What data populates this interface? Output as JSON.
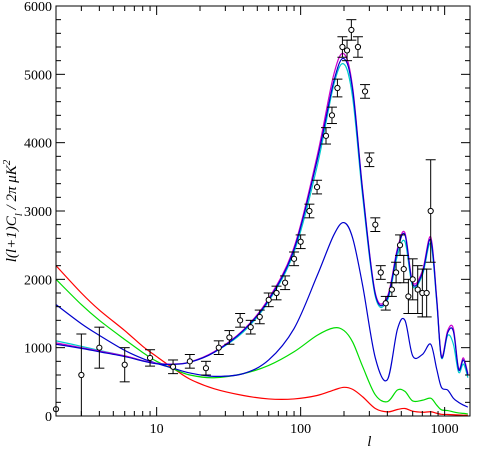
{
  "chart_data": {
    "type": "line",
    "title": "",
    "xlabel": "l",
    "ylabel_parts": [
      "l(l+1)C",
      "l",
      " / 2π  μK",
      "2"
    ],
    "x_scale": "log",
    "xlim": [
      2,
      1500
    ],
    "ylim": [
      0,
      6000
    ],
    "x_tick_labels": [
      "10",
      "100",
      "1000"
    ],
    "x_major_ticks": [
      10,
      100,
      1000
    ],
    "y_tick_labels": [
      "0",
      "1000",
      "2000",
      "3000",
      "4000",
      "5000",
      "6000"
    ],
    "y_major_ticks": [
      0,
      1000,
      2000,
      3000,
      4000,
      5000,
      6000
    ],
    "grid": false,
    "legend": "none",
    "series": [
      {
        "color": "#ff0000",
        "x": [
          2,
          3,
          4,
          6,
          8,
          10,
          13,
          17,
          25,
          40,
          60,
          90,
          130,
          170,
          200,
          230,
          270,
          330,
          400,
          470,
          530,
          600,
          700,
          800,
          880,
          950,
          1050,
          1150,
          1250,
          1350,
          1450
        ],
        "values": [
          2200,
          1800,
          1550,
          1250,
          1020,
          870,
          700,
          540,
          400,
          300,
          250,
          250,
          300,
          380,
          420,
          390,
          280,
          110,
          60,
          95,
          110,
          70,
          55,
          62,
          40,
          25,
          22,
          18,
          15,
          12,
          10
        ]
      },
      {
        "color": "#00dd00",
        "x": [
          2,
          3,
          4,
          6,
          8,
          10,
          13,
          17,
          25,
          40,
          60,
          90,
          130,
          170,
          200,
          230,
          270,
          330,
          400,
          470,
          530,
          600,
          700,
          800,
          880,
          950,
          1050,
          1150,
          1250,
          1350,
          1450
        ],
        "values": [
          2000,
          1630,
          1400,
          1120,
          930,
          800,
          690,
          600,
          560,
          620,
          740,
          940,
          1180,
          1290,
          1250,
          1080,
          720,
          310,
          210,
          380,
          360,
          220,
          230,
          260,
          160,
          90,
          80,
          60,
          45,
          38,
          30
        ]
      },
      {
        "color": "#0000cc",
        "x": [
          2,
          3,
          4,
          6,
          8,
          10,
          13,
          17,
          25,
          40,
          60,
          90,
          130,
          170,
          200,
          230,
          270,
          330,
          400,
          470,
          530,
          600,
          700,
          800,
          880,
          950,
          1050,
          1150,
          1250,
          1350,
          1450
        ],
        "values": [
          1630,
          1350,
          1180,
          960,
          840,
          770,
          700,
          630,
          580,
          620,
          820,
          1280,
          2050,
          2650,
          2830,
          2600,
          1900,
          850,
          530,
          1270,
          1400,
          880,
          900,
          1050,
          690,
          420,
          380,
          260,
          200,
          160,
          130
        ]
      },
      {
        "color": "#00cccc",
        "x": [
          2,
          3,
          4,
          6,
          8,
          10,
          13,
          17,
          25,
          40,
          60,
          90,
          130,
          170,
          200,
          230,
          270,
          330,
          400,
          470,
          530,
          600,
          700,
          800,
          880,
          950,
          1050,
          1150,
          1250,
          1350,
          1450
        ],
        "values": [
          1100,
          1020,
          960,
          880,
          810,
          770,
          760,
          790,
          930,
          1230,
          1680,
          2400,
          3650,
          4850,
          5150,
          4650,
          3200,
          1750,
          1690,
          2350,
          2550,
          1900,
          2060,
          2520,
          1680,
          850,
          1180,
          1050,
          640,
          760,
          560
        ]
      },
      {
        "color": "#cc00cc",
        "x": [
          2,
          3,
          4,
          6,
          8,
          10,
          13,
          17,
          25,
          40,
          60,
          90,
          130,
          170,
          200,
          230,
          270,
          330,
          400,
          470,
          530,
          600,
          700,
          800,
          880,
          950,
          1050,
          1150,
          1250,
          1350,
          1450
        ],
        "values": [
          1070,
          1000,
          950,
          880,
          810,
          770,
          760,
          790,
          940,
          1260,
          1720,
          2470,
          3800,
          5000,
          5300,
          4800,
          3300,
          1800,
          1750,
          2450,
          2680,
          1960,
          2120,
          2620,
          1740,
          880,
          1250,
          1280,
          700,
          850,
          620
        ]
      },
      {
        "color": "#0000cc",
        "x": [
          2,
          3,
          4,
          6,
          8,
          10,
          13,
          17,
          25,
          40,
          60,
          90,
          130,
          170,
          200,
          230,
          270,
          330,
          400,
          470,
          530,
          600,
          700,
          800,
          880,
          950,
          1050,
          1150,
          1250,
          1350,
          1450
        ],
        "values": [
          1050,
          990,
          940,
          870,
          805,
          765,
          755,
          785,
          930,
          1250,
          1700,
          2440,
          3740,
          4900,
          5230,
          4760,
          3270,
          1780,
          1720,
          2420,
          2650,
          1930,
          2090,
          2580,
          1710,
          860,
          1220,
          1240,
          680,
          820,
          600
        ]
      }
    ],
    "data_points": {
      "x": [
        2,
        3,
        4,
        6,
        9,
        13,
        17,
        22,
        27,
        32,
        38,
        45,
        52,
        60,
        68,
        78,
        90,
        100,
        115,
        130,
        150,
        165,
        180,
        195,
        210,
        225,
        250,
        280,
        300,
        330,
        360,
        390,
        430,
        460,
        490,
        520,
        560,
        600,
        650,
        700,
        750,
        800
      ],
      "y": [
        100,
        600,
        1000,
        750,
        850,
        720,
        800,
        700,
        1000,
        1150,
        1400,
        1300,
        1450,
        1700,
        1800,
        1950,
        2300,
        2550,
        3000,
        3350,
        4100,
        4400,
        4800,
        5400,
        5350,
        5650,
        5400,
        4750,
        3750,
        2800,
        2100,
        1650,
        1850,
        2100,
        2500,
        2150,
        1750,
        2000,
        1850,
        1800,
        1800,
        3000
      ],
      "err": [
        0,
        600,
        300,
        250,
        120,
        100,
        100,
        100,
        100,
        100,
        100,
        100,
        100,
        100,
        100,
        100,
        100,
        100,
        100,
        100,
        120,
        120,
        130,
        150,
        150,
        150,
        150,
        100,
        100,
        100,
        100,
        100,
        100,
        150,
        150,
        200,
        250,
        300,
        350,
        350,
        350,
        750
      ]
    }
  }
}
